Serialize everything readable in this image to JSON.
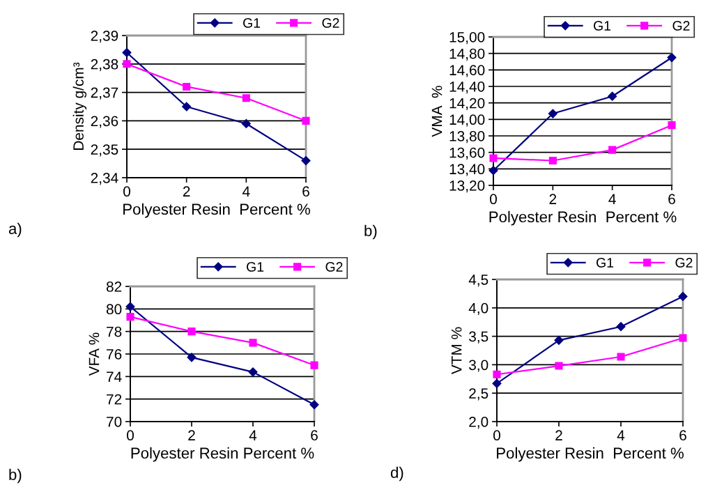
{
  "chart_data": [
    {
      "type": "line",
      "ylabel": "Density g/cm³",
      "xlabel": "Polyester Resin  Percent %",
      "annotations": [
        "a)"
      ],
      "x": [
        0,
        2,
        4,
        6
      ],
      "xlim": [
        0,
        6
      ],
      "xticks": [
        0,
        2,
        4,
        6
      ],
      "ylim": [
        2.34,
        2.39
      ],
      "yticks": [
        {
          "value": 2.34,
          "label": "2,34"
        },
        {
          "value": 2.35,
          "label": "2,35"
        },
        {
          "value": 2.36,
          "label": "2,36"
        },
        {
          "value": 2.37,
          "label": "2,37"
        },
        {
          "value": 2.38,
          "label": "2,38"
        },
        {
          "value": 2.39,
          "label": "2,39"
        }
      ],
      "grid": "y",
      "legend": "top right",
      "series": [
        {
          "name": "G1",
          "color": "#000080",
          "marker": "diamond",
          "values": [
            2.384,
            2.365,
            2.359,
            2.346
          ]
        },
        {
          "name": "G2",
          "color": "#ff00ff",
          "marker": "square",
          "values": [
            2.38,
            2.372,
            2.368,
            2.36
          ]
        }
      ]
    },
    {
      "type": "line",
      "ylabel": "VMA  %",
      "xlabel": "Polyester Resin  Percent %",
      "annotations": [
        "b)"
      ],
      "x": [
        0,
        2,
        4,
        6
      ],
      "xlim": [
        0,
        6
      ],
      "xticks": [
        0,
        2,
        4,
        6
      ],
      "ylim": [
        13.2,
        15.0
      ],
      "yticks": [
        {
          "value": 13.2,
          "label": "13,20"
        },
        {
          "value": 13.4,
          "label": "13,40"
        },
        {
          "value": 13.6,
          "label": "13,60"
        },
        {
          "value": 13.8,
          "label": "13,80"
        },
        {
          "value": 14.0,
          "label": "14,00"
        },
        {
          "value": 14.2,
          "label": "14,20"
        },
        {
          "value": 14.4,
          "label": "14,40"
        },
        {
          "value": 14.6,
          "label": "14,60"
        },
        {
          "value": 14.8,
          "label": "14,80"
        },
        {
          "value": 15.0,
          "label": "15,00"
        }
      ],
      "grid": "y",
      "legend": "top right",
      "series": [
        {
          "name": "G1",
          "color": "#000080",
          "marker": "diamond",
          "values": [
            13.38,
            14.07,
            14.28,
            14.75
          ]
        },
        {
          "name": "G2",
          "color": "#ff00ff",
          "marker": "square",
          "values": [
            13.53,
            13.5,
            13.63,
            13.93
          ]
        }
      ]
    },
    {
      "type": "line",
      "ylabel": "VFA %",
      "xlabel": "Polyester Resin Percent %",
      "annotations": [
        "b)"
      ],
      "x": [
        0,
        2,
        4,
        6
      ],
      "xlim": [
        0,
        6
      ],
      "xticks": [
        0,
        2,
        4,
        6
      ],
      "ylim": [
        70,
        82
      ],
      "yticks": [
        70,
        72,
        74,
        76,
        78,
        80,
        82
      ],
      "grid": "y",
      "legend": "top right",
      "series": [
        {
          "name": "G1",
          "color": "#000080",
          "marker": "diamond",
          "values": [
            80.2,
            75.7,
            74.4,
            71.5
          ]
        },
        {
          "name": "G2",
          "color": "#ff00ff",
          "marker": "square",
          "values": [
            79.3,
            78.0,
            77.0,
            75.0
          ]
        }
      ]
    },
    {
      "type": "line",
      "ylabel": "VTM %",
      "xlabel": "Polyester Resin  Percent %",
      "annotations": [
        "d)"
      ],
      "x": [
        0,
        2,
        4,
        6
      ],
      "xlim": [
        0,
        6
      ],
      "xticks": [
        0,
        2,
        4,
        6
      ],
      "ylim": [
        2.0,
        4.5
      ],
      "yticks": [
        {
          "value": 2.0,
          "label": "2,0"
        },
        {
          "value": 2.5,
          "label": "2,5"
        },
        {
          "value": 3.0,
          "label": "3,0"
        },
        {
          "value": 3.5,
          "label": "3,5"
        },
        {
          "value": 4.0,
          "label": "4,0"
        },
        {
          "value": 4.5,
          "label": "4,5"
        }
      ],
      "grid": "y",
      "legend": "top right",
      "series": [
        {
          "name": "G1",
          "color": "#000080",
          "marker": "diamond",
          "values": [
            2.67,
            3.43,
            3.67,
            4.2
          ]
        },
        {
          "name": "G2",
          "color": "#ff00ff",
          "marker": "square",
          "values": [
            2.83,
            2.98,
            3.14,
            3.47
          ]
        }
      ]
    }
  ]
}
